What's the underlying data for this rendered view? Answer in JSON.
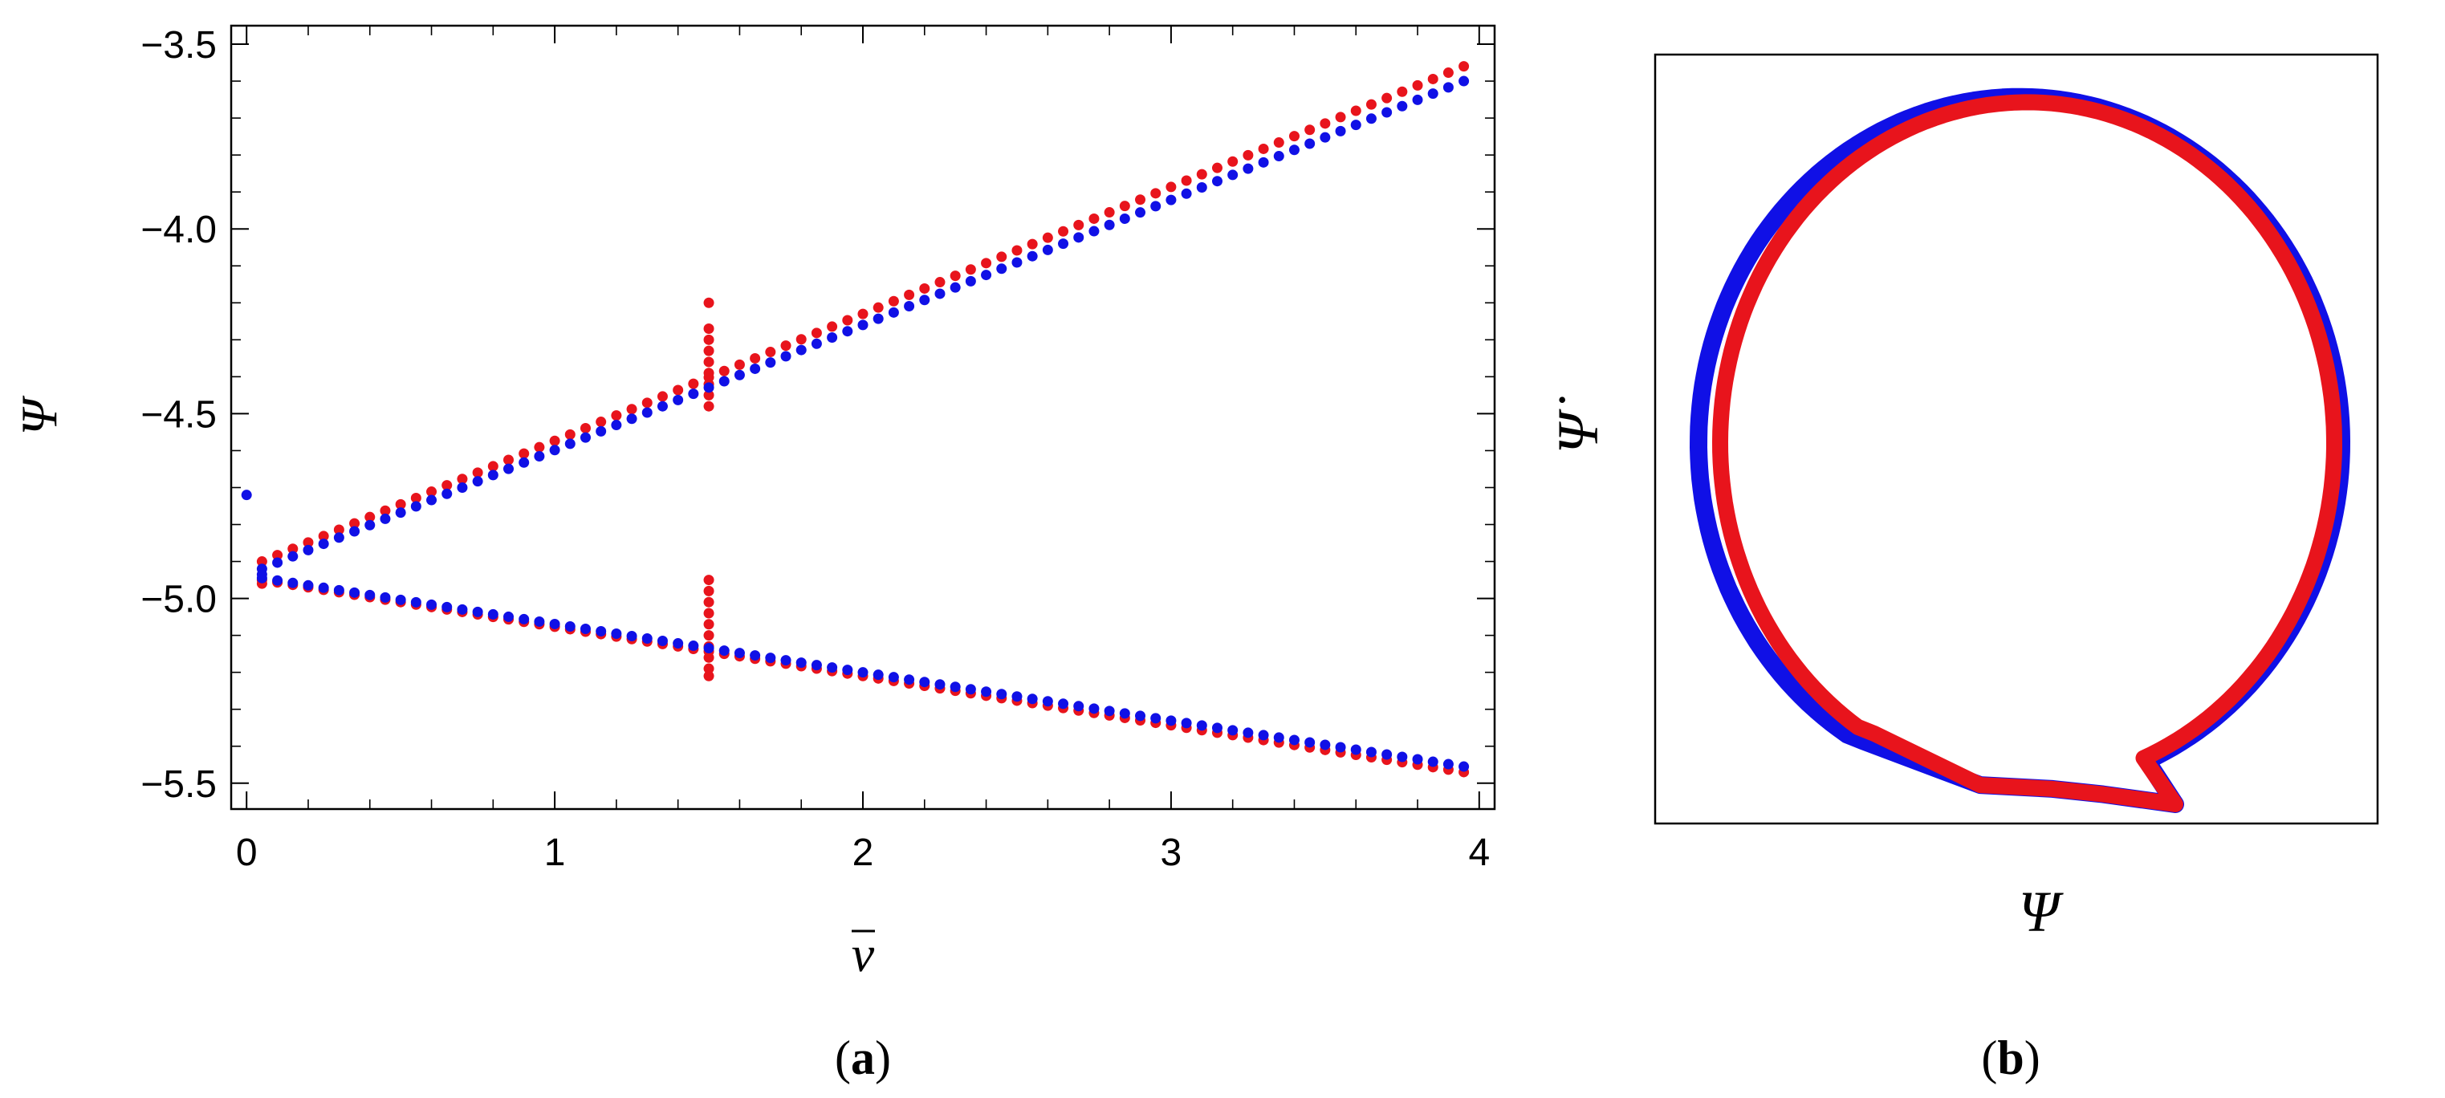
{
  "chart_data": [
    {
      "type": "scatter",
      "panel_label": "a",
      "xlabel": "v",
      "ylabel": "Ψ",
      "xlim": [
        -0.05,
        4.05
      ],
      "ylim": [
        -5.57,
        -3.45
      ],
      "x_ticks": [
        {
          "value": 0,
          "label": "0"
        },
        {
          "value": 1,
          "label": "1"
        },
        {
          "value": 2,
          "label": "2"
        },
        {
          "value": 3,
          "label": "3"
        },
        {
          "value": 4,
          "label": "4"
        }
      ],
      "y_ticks": [
        {
          "value": -3.5,
          "label": "−3.5"
        },
        {
          "value": -4.0,
          "label": "−4.0"
        },
        {
          "value": -4.5,
          "label": "−4.5"
        },
        {
          "value": -5.0,
          "label": "−5.0"
        },
        {
          "value": -5.5,
          "label": "−5.5"
        }
      ],
      "grid": false,
      "series": [
        {
          "color": "#e8141c",
          "upper_branch": {
            "x_start": 0.05,
            "y_start": -4.9,
            "x_end": 3.95,
            "y_end": -3.56,
            "step": 0.05
          },
          "lower_branch": {
            "x_start": 0.05,
            "y_start": -4.95,
            "x_end": 3.95,
            "y_end": -5.47,
            "step": 0.05
          },
          "extra_points": [
            [
              0.05,
              -4.96
            ],
            [
              1.5,
              -4.2
            ],
            [
              1.5,
              -4.27
            ],
            [
              1.5,
              -4.3
            ],
            [
              1.5,
              -4.33
            ],
            [
              1.5,
              -4.36
            ],
            [
              1.5,
              -4.39
            ],
            [
              1.5,
              -4.42
            ],
            [
              1.5,
              -4.45
            ],
            [
              1.5,
              -4.48
            ],
            [
              1.5,
              -4.95
            ],
            [
              1.5,
              -4.98
            ],
            [
              1.5,
              -5.01
            ],
            [
              1.5,
              -5.04
            ],
            [
              1.5,
              -5.07
            ],
            [
              1.5,
              -5.1
            ],
            [
              1.5,
              -5.13
            ],
            [
              1.5,
              -5.16
            ],
            [
              1.5,
              -5.19
            ],
            [
              1.5,
              -5.21
            ]
          ]
        },
        {
          "color": "#1010e6",
          "upper_branch": {
            "x_start": 0.05,
            "y_start": -4.92,
            "x_end": 3.95,
            "y_end": -3.6,
            "step": 0.05
          },
          "lower_branch": {
            "x_start": 0.05,
            "y_start": -4.945,
            "x_end": 3.95,
            "y_end": -5.455,
            "step": 0.05
          },
          "extra_points": [
            [
              0.0,
              -4.72
            ],
            [
              0.05,
              -4.935
            ]
          ]
        }
      ]
    },
    {
      "type": "line",
      "panel_label": "b",
      "xlabel": "Ψ",
      "ylabel": "Ψ̇",
      "axes_ticks": false,
      "series": [
        {
          "color": "#1010e6"
        },
        {
          "color": "#e8141c"
        }
      ]
    }
  ]
}
